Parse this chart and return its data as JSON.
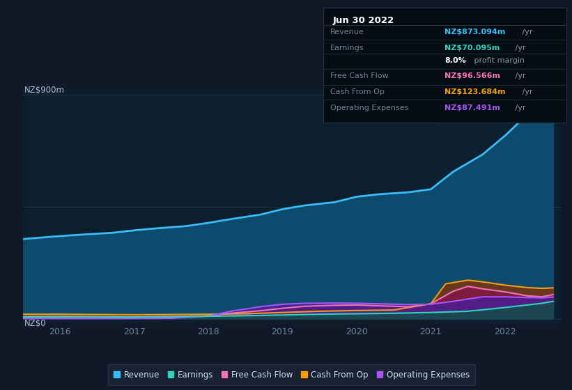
{
  "bg_color": "#111827",
  "plot_bg_color": "#0d1f2d",
  "series": {
    "revenue": {
      "color": "#38bdf8",
      "fill_color": "#0e4a6e",
      "x": [
        2015.5,
        2016.0,
        2016.3,
        2016.7,
        2017.0,
        2017.3,
        2017.7,
        2018.0,
        2018.3,
        2018.7,
        2019.0,
        2019.3,
        2019.7,
        2020.0,
        2020.3,
        2020.7,
        2021.0,
        2021.3,
        2021.7,
        2022.0,
        2022.3,
        2022.55,
        2022.65
      ],
      "y": [
        320,
        332,
        338,
        345,
        355,
        363,
        372,
        385,
        400,
        418,
        440,
        455,
        468,
        490,
        500,
        508,
        520,
        590,
        660,
        735,
        820,
        865,
        873
      ]
    },
    "earnings": {
      "color": "#2dd4bf",
      "fill_color": "#134e4a",
      "x": [
        2015.5,
        2016.0,
        2016.5,
        2017.0,
        2017.5,
        2018.0,
        2018.5,
        2019.0,
        2019.5,
        2020.0,
        2020.5,
        2021.0,
        2021.5,
        2022.0,
        2022.5,
        2022.65
      ],
      "y": [
        8,
        9,
        8,
        7,
        9,
        10,
        12,
        15,
        18,
        20,
        22,
        25,
        30,
        45,
        62,
        70
      ]
    },
    "free_cash_flow": {
      "color": "#f472b6",
      "fill_color": "#831843",
      "x": [
        2015.5,
        2016.0,
        2016.5,
        2017.0,
        2017.5,
        2018.0,
        2018.3,
        2018.7,
        2019.0,
        2019.3,
        2019.7,
        2020.0,
        2020.3,
        2020.7,
        2021.0,
        2021.3,
        2021.5,
        2021.7,
        2022.0,
        2022.3,
        2022.5,
        2022.65
      ],
      "y": [
        4,
        4,
        3,
        3,
        5,
        12,
        22,
        32,
        42,
        50,
        54,
        55,
        52,
        48,
        60,
        110,
        130,
        120,
        108,
        92,
        88,
        97
      ]
    },
    "cash_from_op": {
      "color": "#f59e0b",
      "fill_color": "#78350f",
      "x": [
        2015.5,
        2016.0,
        2016.5,
        2017.0,
        2017.5,
        2018.0,
        2018.5,
        2019.0,
        2019.5,
        2020.0,
        2020.5,
        2021.0,
        2021.2,
        2021.5,
        2021.7,
        2022.0,
        2022.3,
        2022.5,
        2022.65
      ],
      "y": [
        18,
        18,
        17,
        16,
        17,
        18,
        20,
        25,
        30,
        33,
        35,
        60,
        140,
        155,
        148,
        135,
        125,
        122,
        124
      ]
    },
    "operating_expenses": {
      "color": "#a855f7",
      "fill_color": "#4c1d95",
      "x": [
        2015.5,
        2016.0,
        2016.5,
        2017.0,
        2017.5,
        2018.0,
        2018.3,
        2018.7,
        2019.0,
        2019.3,
        2019.7,
        2020.0,
        2020.3,
        2020.7,
        2021.0,
        2021.3,
        2021.7,
        2022.0,
        2022.3,
        2022.5,
        2022.65
      ],
      "y": [
        1,
        1,
        1,
        1,
        2,
        10,
        30,
        48,
        58,
        62,
        63,
        62,
        60,
        57,
        58,
        70,
        88,
        88,
        85,
        84,
        87
      ]
    }
  },
  "xlabel_color": "#6b8599",
  "ylabel_text": "NZ$900m",
  "y0_text": "NZ$0",
  "xlim": [
    2015.5,
    2022.75
  ],
  "ylim": [
    -20,
    920
  ],
  "xticks": [
    2016,
    2017,
    2018,
    2019,
    2020,
    2021,
    2022
  ],
  "highlight_x_start": 2021.05,
  "highlight_x_end": 2022.75,
  "highlight_color": "#0d2030",
  "grid_color": "#1e3448",
  "legend": [
    {
      "label": "Revenue",
      "color": "#38bdf8"
    },
    {
      "label": "Earnings",
      "color": "#2dd4bf"
    },
    {
      "label": "Free Cash Flow",
      "color": "#f472b6"
    },
    {
      "label": "Cash From Op",
      "color": "#f59e0b"
    },
    {
      "label": "Operating Expenses",
      "color": "#a855f7"
    }
  ],
  "legend_bg": "#1a2535",
  "legend_edge": "#2a3a4a",
  "info_box": {
    "title": "Jun 30 2022",
    "title_color": "#ffffff",
    "bg_color": "#050d12",
    "border_color": "#1e3448",
    "rows": [
      {
        "label": "Revenue",
        "value": "NZ$873.094m",
        "suffix": " /yr",
        "value_color": "#38bdf8",
        "label_color": "#6b8599"
      },
      {
        "label": "Earnings",
        "value": "NZ$70.095m",
        "suffix": " /yr",
        "value_color": "#2dd4bf",
        "label_color": "#6b8599"
      },
      {
        "label": "",
        "value": "8.0%",
        "suffix": " profit margin",
        "value_color": "#ffffff",
        "label_color": "#6b8599"
      },
      {
        "label": "Free Cash Flow",
        "value": "NZ$96.566m",
        "suffix": " /yr",
        "value_color": "#f472b6",
        "label_color": "#6b8599"
      },
      {
        "label": "Cash From Op",
        "value": "NZ$123.684m",
        "suffix": " /yr",
        "value_color": "#f59e0b",
        "label_color": "#6b8599"
      },
      {
        "label": "Operating Expenses",
        "value": "NZ$87.491m",
        "suffix": " /yr",
        "value_color": "#a855f7",
        "label_color": "#6b8599"
      }
    ]
  }
}
